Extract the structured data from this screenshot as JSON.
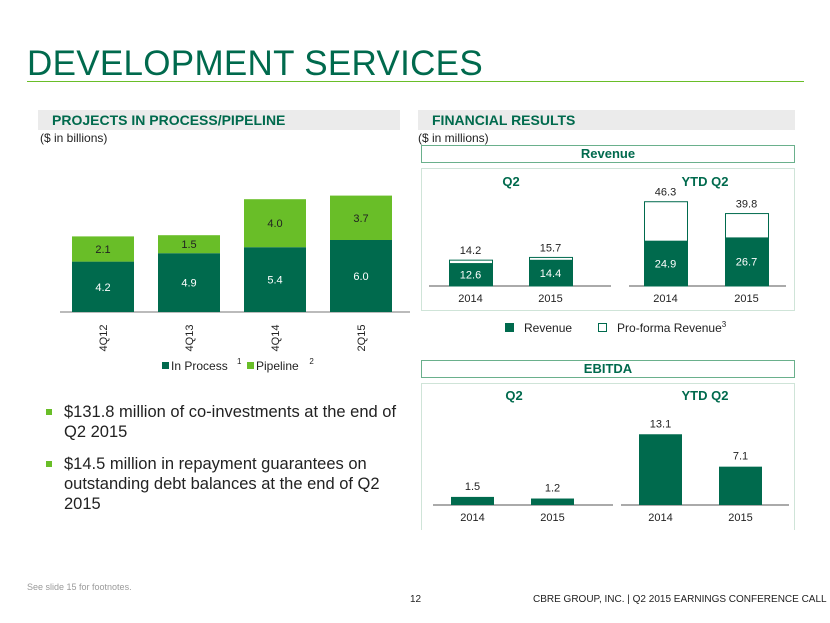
{
  "page": {
    "title": "DEVELOPMENT SERVICES",
    "footnote": "See slide 15 for footnotes.",
    "page_number": "12",
    "footer": "CBRE GROUP, INC. | Q2 2015 EARNINGS CONFERENCE CALL",
    "colors": {
      "dark_green": "#006a4d",
      "light_green": "#69be28",
      "bar_gray": "#ebebeb"
    }
  },
  "left": {
    "section_title": "PROJECTS IN PROCESS/PIPELINE",
    "unit": "($ in billions)",
    "bullets": [
      "$131.8 million of co-investments at the end of Q2 2015",
      "$14.5 million in repayment guarantees on outstanding debt balances at the end of Q2 2015"
    ]
  },
  "right": {
    "section_title": "FINANCIAL RESULTS",
    "unit": "($ in millions)",
    "revenue_header": "Revenue",
    "ebitda_header": "EBITDA",
    "legend": {
      "revenue": "Revenue",
      "proforma": "Pro-forma Revenue",
      "proforma_sup": "3"
    }
  },
  "chart_data": [
    {
      "id": "pipeline",
      "type": "bar",
      "stacked": true,
      "categories": [
        "4Q12",
        "4Q13",
        "4Q14",
        "2Q15"
      ],
      "series": [
        {
          "name": "In Process",
          "footnote": "1",
          "color": "#006a4d",
          "values": [
            4.2,
            4.9,
            5.4,
            6.0
          ]
        },
        {
          "name": "Pipeline",
          "footnote": "2",
          "color": "#69be28",
          "values": [
            2.1,
            1.5,
            4.0,
            3.7
          ]
        }
      ],
      "ylim": [
        0,
        10
      ],
      "legend": "bottom",
      "grid": false
    },
    {
      "id": "revenue",
      "type": "bar",
      "groups": [
        {
          "title": "Q2",
          "categories": [
            "2014",
            "2015"
          ],
          "revenue": [
            12.6,
            14.4
          ],
          "proforma_total": [
            14.2,
            15.7
          ]
        },
        {
          "title": "YTD Q2",
          "categories": [
            "2014",
            "2015"
          ],
          "revenue": [
            24.9,
            26.7
          ],
          "proforma_total": [
            46.3,
            39.8
          ]
        }
      ],
      "legend": "bottom"
    },
    {
      "id": "ebitda",
      "type": "bar",
      "groups": [
        {
          "title": "Q2",
          "categories": [
            "2014",
            "2015"
          ],
          "values": [
            1.5,
            1.2
          ]
        },
        {
          "title": "YTD Q2",
          "categories": [
            "2014",
            "2015"
          ],
          "values": [
            13.1,
            7.1
          ]
        }
      ]
    }
  ]
}
